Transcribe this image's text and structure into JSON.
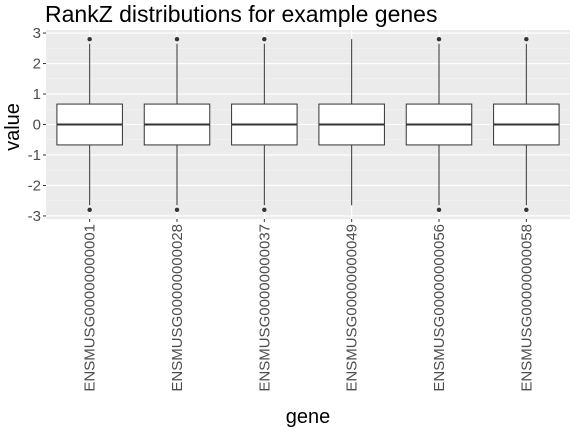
{
  "chart_data": {
    "type": "boxplot",
    "title": "RankZ distributions for example genes",
    "xlabel": "gene",
    "ylabel": "value",
    "ylim": [
      -3.1,
      3.1
    ],
    "yticks": [
      3,
      2,
      1,
      0,
      -1,
      -2,
      -3
    ],
    "ytick_labels": [
      "3",
      "2",
      "1",
      "0",
      "-1",
      "-2",
      "-3"
    ],
    "categories": [
      "ENSMUSG00000000001",
      "ENSMUSG00000000028",
      "ENSMUSG00000000037",
      "ENSMUSG00000000049",
      "ENSMUSG00000000056",
      "ENSMUSG00000000058"
    ],
    "boxes": [
      {
        "q1": -0.67,
        "median": 0.0,
        "q3": 0.67,
        "whisker_low": -2.65,
        "whisker_high": 2.65,
        "outliers": [
          -2.8,
          2.8
        ]
      },
      {
        "q1": -0.67,
        "median": 0.0,
        "q3": 0.67,
        "whisker_low": -2.65,
        "whisker_high": 2.65,
        "outliers": [
          -2.8,
          2.8
        ]
      },
      {
        "q1": -0.67,
        "median": 0.0,
        "q3": 0.67,
        "whisker_low": -2.65,
        "whisker_high": 2.65,
        "outliers": [
          -2.8,
          2.8
        ]
      },
      {
        "q1": -0.67,
        "median": 0.0,
        "q3": 0.67,
        "whisker_low": -2.65,
        "whisker_high": 2.8,
        "outliers": []
      },
      {
        "q1": -0.67,
        "median": 0.0,
        "q3": 0.67,
        "whisker_low": -2.65,
        "whisker_high": 2.65,
        "outliers": [
          -2.8,
          2.8
        ]
      },
      {
        "q1": -0.67,
        "median": 0.0,
        "q3": 0.67,
        "whisker_low": -2.65,
        "whisker_high": 2.65,
        "outliers": [
          -2.8,
          2.8
        ]
      }
    ],
    "grid": true,
    "colors": {
      "panel": "#EBEBEB",
      "grid_major": "#FFFFFF",
      "grid_minor": "#F4F4F4",
      "box_fill": "#FFFFFF",
      "box_stroke": "#333333",
      "point": "#333333",
      "tick": "#333333"
    }
  }
}
